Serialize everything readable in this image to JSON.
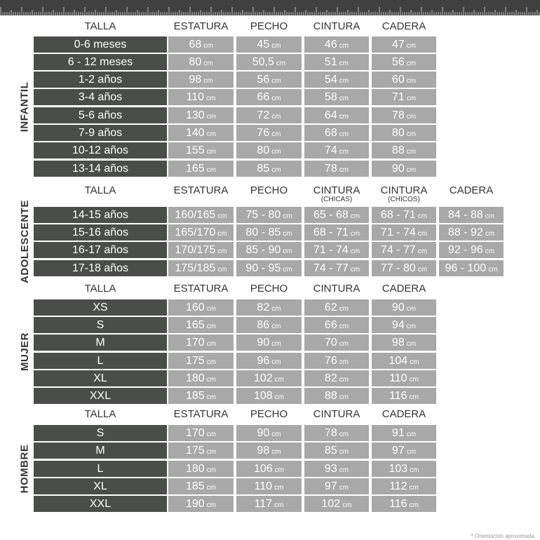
{
  "colors": {
    "label_bg": "#4b4d4b",
    "value_bg": "#a8a8a8",
    "ruler": "#3f403f"
  },
  "unit": "cm",
  "sections": [
    {
      "name": "INFANTIL",
      "headers": [
        {
          "t": "TALLA"
        },
        {
          "t": "ESTATURA"
        },
        {
          "t": "PECHO"
        },
        {
          "t": "CINTURA"
        },
        {
          "t": "CADERA"
        }
      ],
      "rows": [
        [
          "0-6 meses",
          "68",
          "45",
          "46",
          "47"
        ],
        [
          "6 - 12 meses",
          "80",
          "50,5",
          "51",
          "56"
        ],
        [
          "1-2 años",
          "98",
          "56",
          "54",
          "60"
        ],
        [
          "3-4 años",
          "110",
          "66",
          "58",
          "71"
        ],
        [
          "5-6 años",
          "130",
          "72",
          "64",
          "78"
        ],
        [
          "7-9 años",
          "140",
          "76",
          "68",
          "80"
        ],
        [
          "10-12 años",
          "155",
          "80",
          "74",
          "88"
        ],
        [
          "13-14 años",
          "165",
          "85",
          "78",
          "90"
        ]
      ]
    },
    {
      "name": "ADOLESCENTE",
      "headers": [
        {
          "t": "TALLA"
        },
        {
          "t": "ESTATURA"
        },
        {
          "t": "PECHO"
        },
        {
          "t": "CINTURA",
          "s": "(CHICAS)"
        },
        {
          "t": "CINTURA",
          "s": "(CHICOS)"
        },
        {
          "t": "CADERA"
        }
      ],
      "rows": [
        [
          "14-15 años",
          "160/165",
          "75 - 80",
          "65 - 68",
          "68 - 71",
          "84 - 88"
        ],
        [
          "15-16 años",
          "165/170",
          "80 - 85",
          "68 - 71",
          "71 - 74",
          "88 - 92"
        ],
        [
          "16-17 años",
          "170/175",
          "85 - 90",
          "71 - 74",
          "74 - 77",
          "92 - 96"
        ],
        [
          "17-18 años",
          "175/185",
          "90 - 95",
          "74 - 77",
          "77 - 80",
          "96 - 100"
        ]
      ]
    },
    {
      "name": "MUJER",
      "headers": [
        {
          "t": "TALLA"
        },
        {
          "t": "ESTATURA"
        },
        {
          "t": "PECHO"
        },
        {
          "t": "CINTURA"
        },
        {
          "t": "CADERA"
        }
      ],
      "rows": [
        [
          "XS",
          "160",
          "82",
          "62",
          "90"
        ],
        [
          "S",
          "165",
          "86",
          "66",
          "94"
        ],
        [
          "M",
          "170",
          "90",
          "70",
          "98"
        ],
        [
          "L",
          "175",
          "96",
          "76",
          "104"
        ],
        [
          "XL",
          "180",
          "102",
          "82",
          "110"
        ],
        [
          "XXL",
          "185",
          "108",
          "88",
          "116"
        ]
      ]
    },
    {
      "name": "HOMBRE",
      "headers": [
        {
          "t": "TALLA"
        },
        {
          "t": "ESTATURA"
        },
        {
          "t": "PECHO"
        },
        {
          "t": "CINTURA"
        },
        {
          "t": "CADERA"
        }
      ],
      "rows": [
        [
          "S",
          "170",
          "90",
          "78",
          "91"
        ],
        [
          "M",
          "175",
          "98",
          "85",
          "97"
        ],
        [
          "L",
          "180",
          "106",
          "93",
          "103"
        ],
        [
          "XL",
          "185",
          "110",
          "97",
          "112"
        ],
        [
          "XXL",
          "190",
          "117",
          "102",
          "116"
        ]
      ]
    }
  ],
  "footnote": "* Orientación aproximada"
}
